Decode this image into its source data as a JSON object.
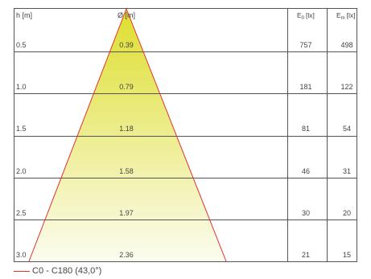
{
  "headers": {
    "height": "h [m]",
    "diameter": "Ø [m]",
    "e0": "E",
    "e0_sub": "0",
    "em": "E",
    "em_sub": "m",
    "unit": "[lx]"
  },
  "rows": [
    {
      "h": "0.5",
      "d": "0.39",
      "e0": "757",
      "em": "498"
    },
    {
      "h": "1.0",
      "d": "0.79",
      "e0": "181",
      "em": "122"
    },
    {
      "h": "1.5",
      "d": "1.18",
      "e0": "81",
      "em": "54"
    },
    {
      "h": "2.0",
      "d": "1.58",
      "e0": "46",
      "em": "31"
    },
    {
      "h": "2.5",
      "d": "1.97",
      "e0": "30",
      "em": "20"
    },
    {
      "h": "3.0",
      "d": "2.36",
      "e0": "21",
      "em": "15"
    }
  ],
  "legend": {
    "label": "C0 - C180 (43,0°)"
  },
  "colors": {
    "cone_edge": "#e03030",
    "fill_top": "#dede30",
    "fill_bottom": "#fcfcf0",
    "grid": "#555555"
  }
}
